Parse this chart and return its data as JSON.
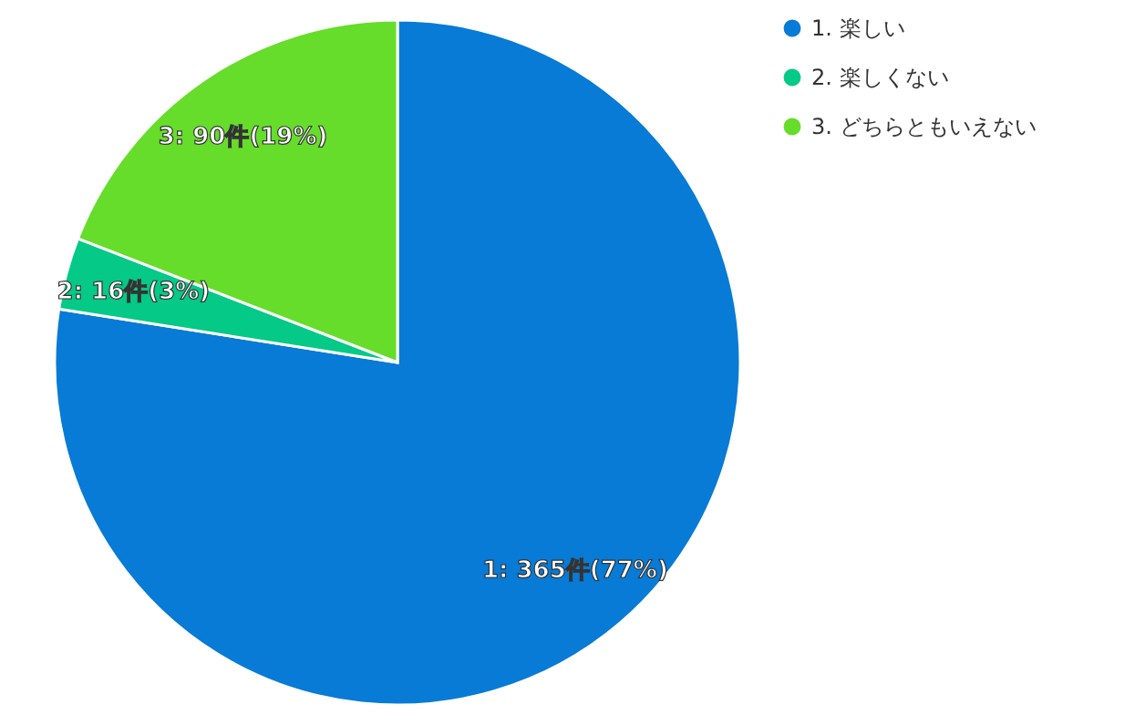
{
  "chart_data": {
    "type": "pie",
    "categories": [
      "1. 楽しい",
      "2. 楽しくない",
      "3. どちらともいえない"
    ],
    "values": [
      365,
      16,
      90
    ],
    "colors": [
      "#077bd6",
      "#05c987",
      "#66dd2a"
    ],
    "value_labels": [
      "1: 365件(77%)",
      "2: 16件(3%)",
      "3: 90件(19%)"
    ],
    "legend": "top right"
  }
}
